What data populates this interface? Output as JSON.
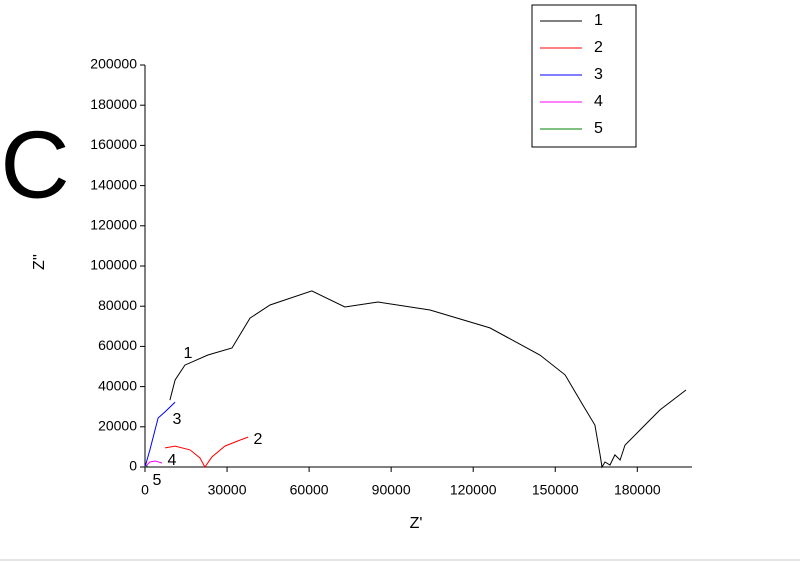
{
  "chart_data": {
    "type": "line",
    "panel_label": "C",
    "x_label": "Z'",
    "y_label": "Z''",
    "xlim": [
      0,
      200000
    ],
    "ylim": [
      0,
      200000
    ],
    "xticks": [
      0,
      30000,
      60000,
      90000,
      120000,
      150000,
      180000
    ],
    "yticks": [
      0,
      20000,
      40000,
      60000,
      80000,
      100000,
      120000,
      140000,
      160000,
      180000,
      200000
    ],
    "grid": false,
    "legend": "top-right",
    "series": [
      {
        "name": "1",
        "color": "#000000",
        "x": [
          9100,
          11000,
          14600,
          23000,
          31800,
          38400,
          45700,
          61000,
          73100,
          85200,
          104200,
          126100,
          144400,
          153600,
          160100,
          164500,
          166400,
          167100,
          168200,
          170000,
          171800,
          173700,
          175500,
          181000,
          188300,
          197800
        ],
        "values": [
          33300,
          43300,
          50700,
          55700,
          59200,
          74100,
          80600,
          87600,
          79600,
          82100,
          78100,
          69200,
          55700,
          45800,
          30800,
          20900,
          6000,
          0,
          2500,
          1000,
          6000,
          3500,
          10900,
          18400,
          28400,
          38300
        ]
      },
      {
        "name": "2",
        "color": "#ff0000",
        "x": [
          7300,
          11000,
          16500,
          20100,
          21900,
          24500,
          29200,
          34700,
          37700
        ],
        "values": [
          9500,
          10400,
          8500,
          4500,
          0,
          5000,
          10400,
          13400,
          14900
        ]
      },
      {
        "name": "3",
        "color": "#0000ff",
        "x": [
          0,
          1800,
          4800,
          7300,
          11000
        ],
        "values": [
          0,
          8500,
          24400,
          27400,
          32300
        ]
      },
      {
        "name": "4",
        "color": "#ff00ff",
        "x": [
          0,
          1800,
          3700,
          6200
        ],
        "values": [
          0,
          2500,
          3000,
          2000
        ]
      },
      {
        "name": "5",
        "color": "#008000",
        "x": [
          0,
          500,
          1000
        ],
        "values": [
          0,
          500,
          300
        ]
      }
    ]
  }
}
